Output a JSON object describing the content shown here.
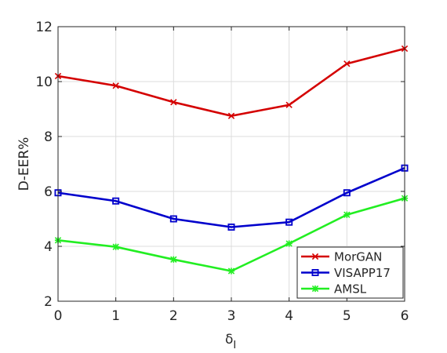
{
  "chart_data": {
    "type": "line",
    "title": "",
    "xlabel_symbol": "δ",
    "xlabel_subscript": "I",
    "ylabel": "D-EER%",
    "x": [
      0,
      1,
      2,
      3,
      4,
      5,
      6
    ],
    "xlim": [
      0,
      6
    ],
    "ylim": [
      2,
      12
    ],
    "xticks": [
      "0",
      "1",
      "2",
      "3",
      "4",
      "5",
      "6"
    ],
    "yticks": [
      "2",
      "4",
      "6",
      "8",
      "10",
      "12"
    ],
    "grid": true,
    "legend_position": "bottom-right",
    "series": [
      {
        "name": "MorGAN",
        "color": "#d40000",
        "marker": "x",
        "values": [
          10.2,
          9.85,
          9.25,
          8.75,
          9.15,
          10.65,
          11.2
        ]
      },
      {
        "name": "VISAPP17",
        "color": "#0000cc",
        "marker": "square",
        "values": [
          5.95,
          5.65,
          5.0,
          4.7,
          4.88,
          5.95,
          6.85
        ]
      },
      {
        "name": "AMSL",
        "color": "#22ee22",
        "marker": "star",
        "values": [
          4.22,
          3.98,
          3.52,
          3.1,
          4.1,
          5.15,
          5.75
        ]
      }
    ]
  }
}
